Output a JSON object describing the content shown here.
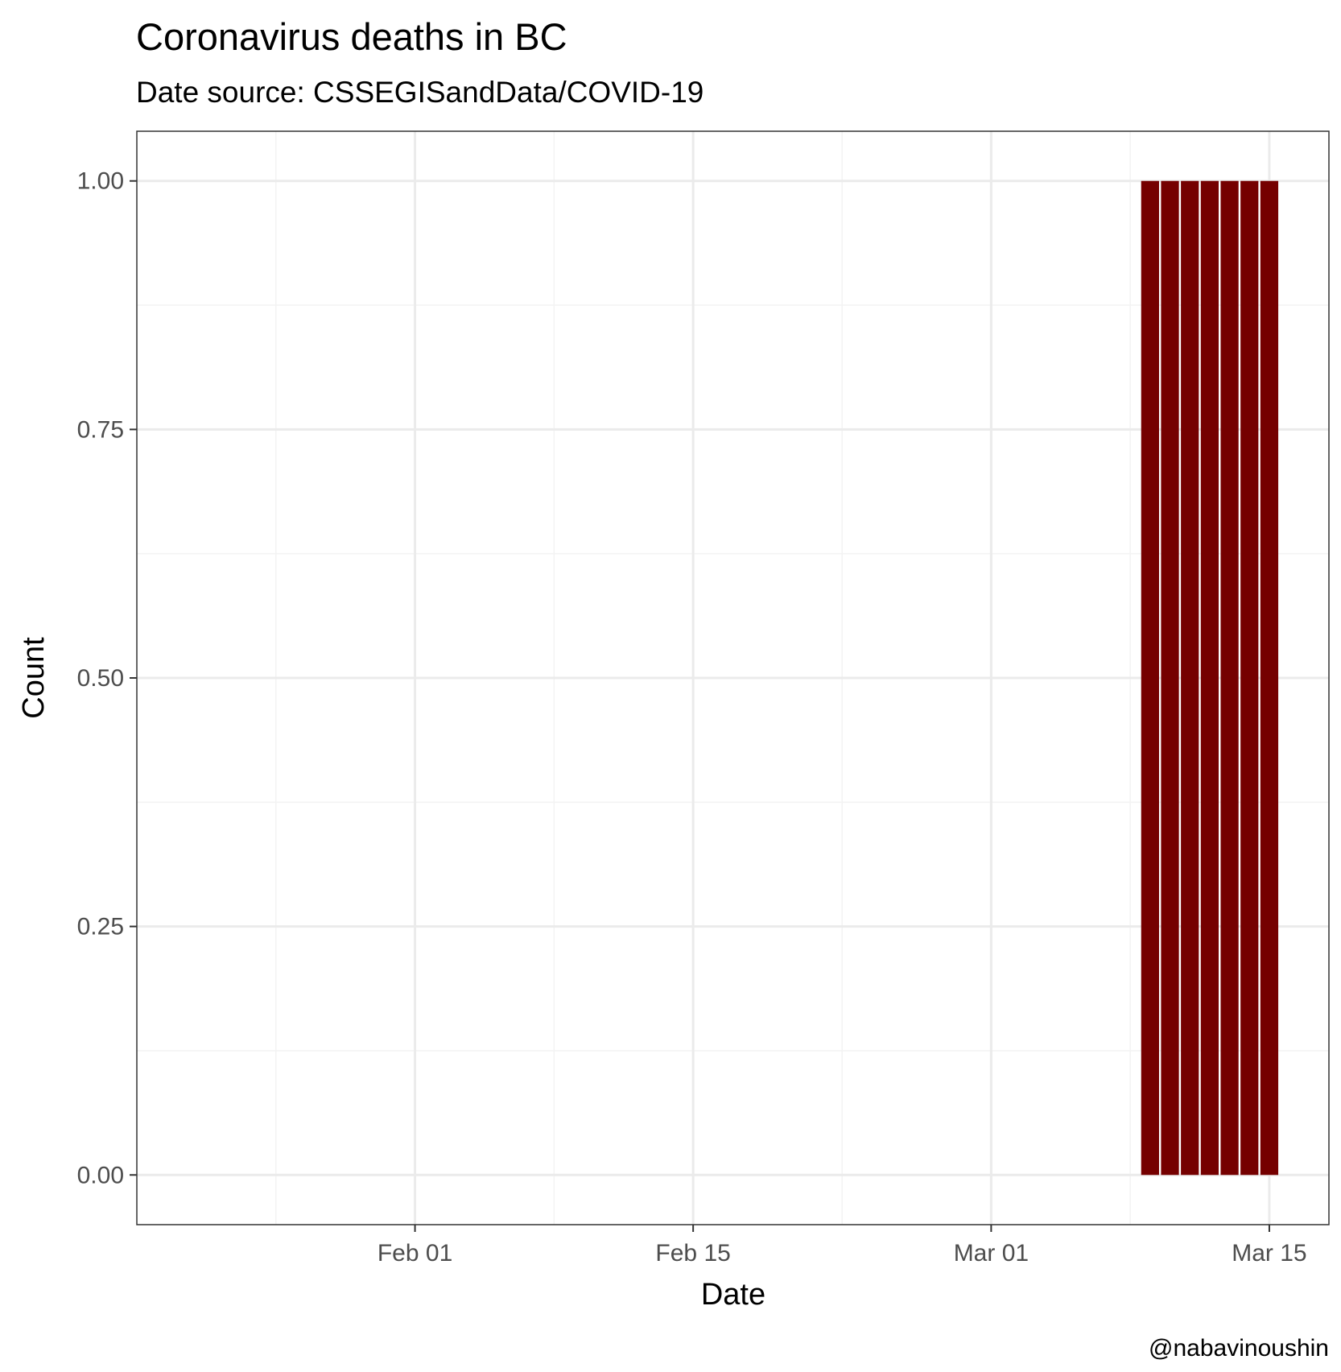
{
  "chart_data": {
    "type": "bar",
    "title": "Coronavirus deaths in BC",
    "subtitle": "Date source: CSSEGISandData/COVID-19",
    "xlabel": "Date",
    "ylabel": "Count",
    "caption": "@nabavinoushin",
    "x_tick_labels": [
      "Feb 01",
      "Feb 15",
      "Mar 01",
      "Mar 15"
    ],
    "y_tick_labels": [
      "0.00",
      "0.25",
      "0.50",
      "0.75",
      "1.00"
    ],
    "ylim": [
      -0.05,
      1.05
    ],
    "xlim": [
      "2020-01-18",
      "2020-03-18"
    ],
    "grid": true,
    "series": [
      {
        "x": [
          "2020-01-22",
          "2020-01-23",
          "2020-01-24",
          "2020-01-25",
          "2020-01-26",
          "2020-01-27",
          "2020-01-28",
          "2020-01-29",
          "2020-01-30",
          "2020-01-31",
          "2020-02-01",
          "2020-02-02",
          "2020-02-03",
          "2020-02-04",
          "2020-02-05",
          "2020-02-06",
          "2020-02-07",
          "2020-02-08",
          "2020-02-09",
          "2020-02-10",
          "2020-02-11",
          "2020-02-12",
          "2020-02-13",
          "2020-02-14",
          "2020-02-15",
          "2020-02-16",
          "2020-02-17",
          "2020-02-18",
          "2020-02-19",
          "2020-02-20",
          "2020-02-21",
          "2020-02-22",
          "2020-02-23",
          "2020-02-24",
          "2020-02-25",
          "2020-02-26",
          "2020-02-27",
          "2020-02-28",
          "2020-02-29",
          "2020-03-01",
          "2020-03-02",
          "2020-03-03",
          "2020-03-04",
          "2020-03-05",
          "2020-03-06",
          "2020-03-07",
          "2020-03-08",
          "2020-03-09",
          "2020-03-10",
          "2020-03-11",
          "2020-03-12",
          "2020-03-13",
          "2020-03-14",
          "2020-03-15"
        ],
        "values": [
          0,
          0,
          0,
          0,
          0,
          0,
          0,
          0,
          0,
          0,
          0,
          0,
          0,
          0,
          0,
          0,
          0,
          0,
          0,
          0,
          0,
          0,
          0,
          0,
          0,
          0,
          0,
          0,
          0,
          0,
          0,
          0,
          0,
          0,
          0,
          0,
          0,
          0,
          0,
          0,
          0,
          0,
          0,
          0,
          0,
          0,
          0,
          1,
          1,
          1,
          1,
          1,
          1,
          1
        ]
      }
    ],
    "colors": {
      "bar": "#750000",
      "grid_major": "#ebebeb",
      "grid_minor": "#f3f3f3",
      "panel_border": "#333333",
      "tick_text": "#4d4d4d"
    }
  }
}
